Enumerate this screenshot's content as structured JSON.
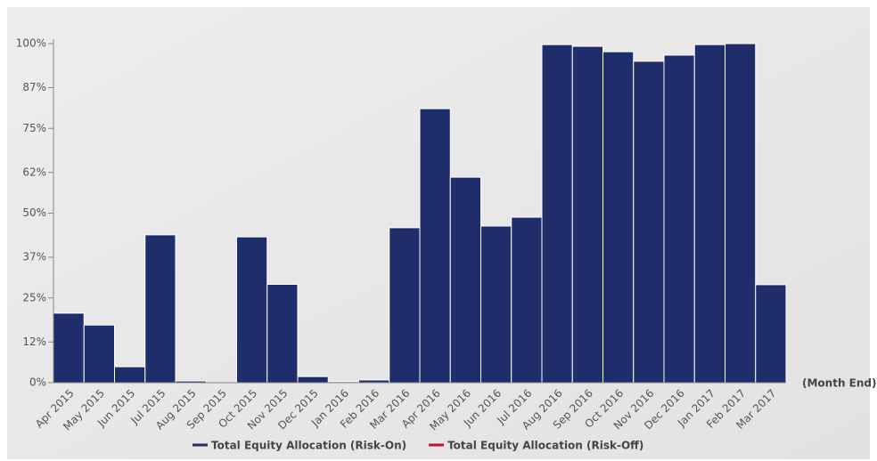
{
  "chart_data": {
    "type": "bar",
    "categories": [
      "Apr 2015",
      "May 2015",
      "Jun 2015",
      "Jul 2015",
      "Aug 2015",
      "Sep 2015",
      "Oct 2015",
      "Nov 2015",
      "Dec 2015",
      "Jan 2016",
      "Feb 2016",
      "Mar 2016",
      "Apr 2016",
      "May 2016",
      "Jun 2016",
      "Jul 2016",
      "Aug 2016",
      "Sep 2016",
      "Oct 2016",
      "Nov 2016",
      "Dec 2016",
      "Jan 2017",
      "Feb 2017",
      "Mar 2017"
    ],
    "series": [
      {
        "name": "Total Equity Allocation (Risk-On)",
        "color": "#1f2d6b",
        "values": [
          20.5,
          17,
          4.7,
          43.6,
          0.5,
          0,
          43,
          29,
          1.8,
          0.3,
          0.8,
          45.7,
          80.8,
          60.6,
          46.2,
          48.8,
          99.7,
          99.2,
          97.6,
          94.8,
          96.6,
          99.7,
          100,
          28.9
        ]
      },
      {
        "name": "Total Equity Allocation (Risk-Off)",
        "color": "#c0152f",
        "values": [
          null,
          null,
          null,
          null,
          null,
          null,
          null,
          null,
          null,
          null,
          null,
          null,
          null,
          null,
          null,
          null,
          null,
          null,
          null,
          null,
          null,
          null,
          null,
          null
        ]
      }
    ],
    "x_label": "(Month End)",
    "ylim": [
      0,
      100
    ],
    "yticks": [
      {
        "value": 0,
        "label": "0%"
      },
      {
        "value": 12,
        "label": "12%"
      },
      {
        "value": 25,
        "label": "25%"
      },
      {
        "value": 37,
        "label": "37%"
      },
      {
        "value": 50,
        "label": "50%"
      },
      {
        "value": 62,
        "label": "62%"
      },
      {
        "value": 75,
        "label": "75%"
      },
      {
        "value": 87,
        "label": "87%"
      },
      {
        "value": 100,
        "label": "100%"
      }
    ],
    "grid": false
  }
}
